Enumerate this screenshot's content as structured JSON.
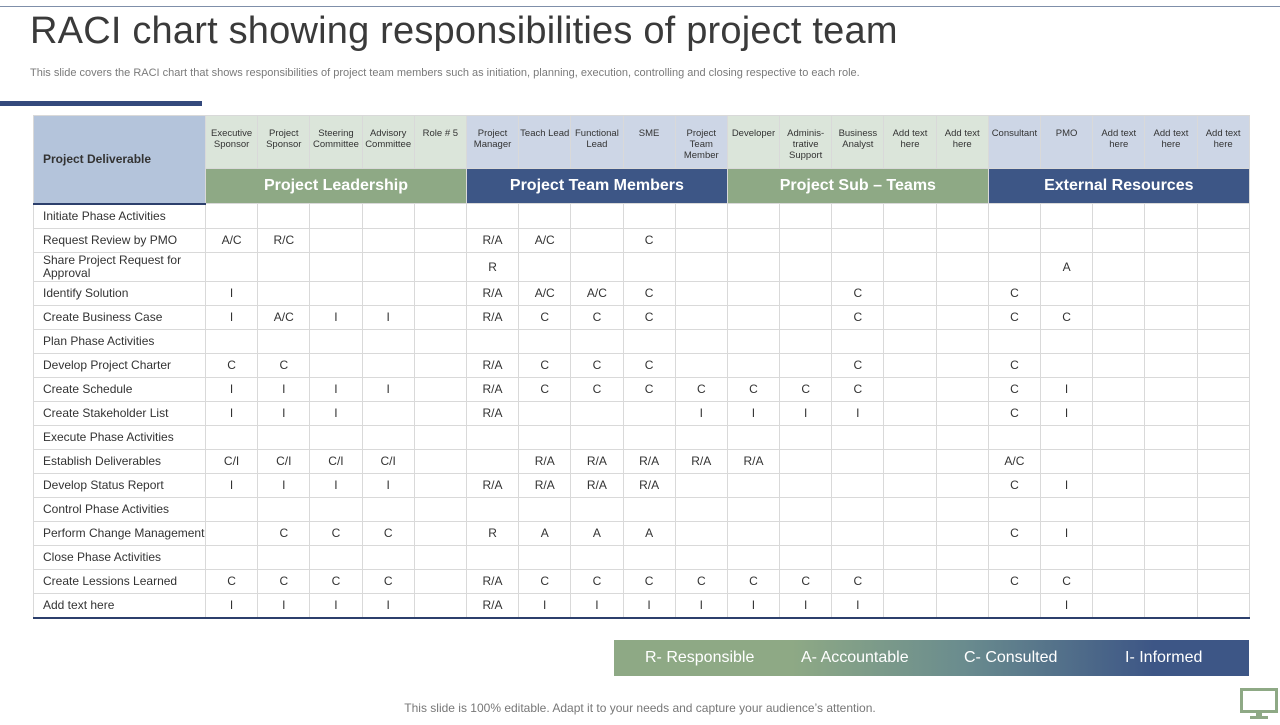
{
  "title": "RACI chart showing responsibilities of project team",
  "subtitle": "This slide covers the RACI chart that shows responsibilities of project team members such as initiation, planning, execution, controlling and closing respective to each role.",
  "table": {
    "deliverable_header": "Project Deliverable",
    "roles": [
      "Executive Sponsor",
      "Project Sponsor",
      "Steering Committee",
      "Advisory Committee",
      "Role # 5",
      "Project Manager",
      "Teach Lead",
      "Functional Lead",
      "SME",
      "Project Team Member",
      "Developer",
      "Adminis-trative Support",
      "Business Analyst",
      "Add text here",
      "Add text here",
      "Consultant",
      "PMO",
      "Add text here",
      "Add text here",
      "Add text here"
    ],
    "groups": [
      "Project Leadership",
      "Project Team Members",
      "Project Sub – Teams",
      "External Resources"
    ],
    "rows": [
      {
        "label": "Initiate Phase Activities",
        "cells": [
          "",
          "",
          "",
          "",
          "",
          "",
          "",
          "",
          "",
          "",
          "",
          "",
          "",
          "",
          "",
          "",
          "",
          "",
          "",
          ""
        ]
      },
      {
        "label": "Request Review by PMO",
        "cells": [
          "A/C",
          "R/C",
          "",
          "",
          "",
          "R/A",
          "A/C",
          "",
          "C",
          "",
          "",
          "",
          "",
          "",
          "",
          "",
          "",
          "",
          "",
          ""
        ]
      },
      {
        "label": "Share Project Request for Approval",
        "cells": [
          "",
          "",
          "",
          "",
          "",
          "R",
          "",
          "",
          "",
          "",
          "",
          "",
          "",
          "",
          "",
          "",
          "A",
          "",
          "",
          ""
        ]
      },
      {
        "label": "Identify Solution",
        "cells": [
          "I",
          "",
          "",
          "",
          "",
          "R/A",
          "A/C",
          "A/C",
          "C",
          "",
          "",
          "",
          "C",
          "",
          "",
          "C",
          "",
          "",
          "",
          ""
        ]
      },
      {
        "label": "Create Business Case",
        "cells": [
          "I",
          "A/C",
          "I",
          "I",
          "",
          "R/A",
          "C",
          "C",
          "C",
          "",
          "",
          "",
          "C",
          "",
          "",
          "C",
          "C",
          "",
          "",
          ""
        ]
      },
      {
        "label": "Plan Phase Activities",
        "cells": [
          "",
          "",
          "",
          "",
          "",
          "",
          "",
          "",
          "",
          "",
          "",
          "",
          "",
          "",
          "",
          "",
          "",
          "",
          "",
          ""
        ]
      },
      {
        "label": "Develop Project Charter",
        "cells": [
          "C",
          "C",
          "",
          "",
          "",
          "R/A",
          "C",
          "C",
          "C",
          "",
          "",
          "",
          "C",
          "",
          "",
          "C",
          "",
          "",
          "",
          ""
        ]
      },
      {
        "label": "Create Schedule",
        "cells": [
          "I",
          "I",
          "I",
          "I",
          "",
          "R/A",
          "C",
          "C",
          "C",
          "C",
          "C",
          "C",
          "C",
          "",
          "",
          "C",
          "I",
          "",
          "",
          ""
        ]
      },
      {
        "label": "Create Stakeholder List",
        "cells": [
          "I",
          "I",
          "I",
          "",
          "",
          "R/A",
          "",
          "",
          "",
          "I",
          "I",
          "I",
          "I",
          "",
          "",
          "C",
          "I",
          "",
          "",
          ""
        ]
      },
      {
        "label": "Execute Phase Activities",
        "cells": [
          "",
          "",
          "",
          "",
          "",
          "",
          "",
          "",
          "",
          "",
          "",
          "",
          "",
          "",
          "",
          "",
          "",
          "",
          "",
          ""
        ]
      },
      {
        "label": "Establish Deliverables",
        "cells": [
          "C/I",
          "C/I",
          "C/I",
          "C/I",
          "",
          "",
          "R/A",
          "R/A",
          "R/A",
          "R/A",
          "R/A",
          "",
          "",
          "",
          "",
          "A/C",
          "",
          "",
          "",
          ""
        ]
      },
      {
        "label": "Develop Status Report",
        "cells": [
          "I",
          "I",
          "I",
          "I",
          "",
          "R/A",
          "R/A",
          "R/A",
          "R/A",
          "",
          "",
          "",
          "",
          "",
          "",
          "C",
          "I",
          "",
          "",
          ""
        ]
      },
      {
        "label": "Control  Phase Activities",
        "cells": [
          "",
          "",
          "",
          "",
          "",
          "",
          "",
          "",
          "",
          "",
          "",
          "",
          "",
          "",
          "",
          "",
          "",
          "",
          "",
          ""
        ]
      },
      {
        "label": "Perform Change Management",
        "cells": [
          "",
          "C",
          "C",
          "C",
          "",
          "R",
          "A",
          "A",
          "A",
          "",
          "",
          "",
          "",
          "",
          "",
          "C",
          "I",
          "",
          "",
          ""
        ]
      },
      {
        "label": "Close Phase Activities",
        "cells": [
          "",
          "",
          "",
          "",
          "",
          "",
          "",
          "",
          "",
          "",
          "",
          "",
          "",
          "",
          "",
          "",
          "",
          "",
          "",
          ""
        ]
      },
      {
        "label": "Create Lessions Learned",
        "cells": [
          "C",
          "C",
          "C",
          "C",
          "",
          "R/A",
          "C",
          "C",
          "C",
          "C",
          "C",
          "C",
          "C",
          "",
          "",
          "C",
          "C",
          "",
          "",
          ""
        ]
      },
      {
        "label": "Add text here",
        "cells": [
          "I",
          "I",
          "I",
          "I",
          "",
          "R/A",
          "I",
          "I",
          "I",
          "I",
          "I",
          "I",
          "I",
          "",
          "",
          "",
          "I",
          "",
          "",
          ""
        ]
      }
    ]
  },
  "legend": [
    "R- Responsible",
    "A- Accountable",
    "C- Consulted",
    "I- Informed"
  ],
  "footer": "This slide is 100% editable. Adapt it to your needs and capture your audience’s attention.",
  "colors": {
    "green": "#8ea985",
    "blue": "#3d5686",
    "header_light": "#b4c4db"
  },
  "icons": [
    "monitor-icon"
  ]
}
